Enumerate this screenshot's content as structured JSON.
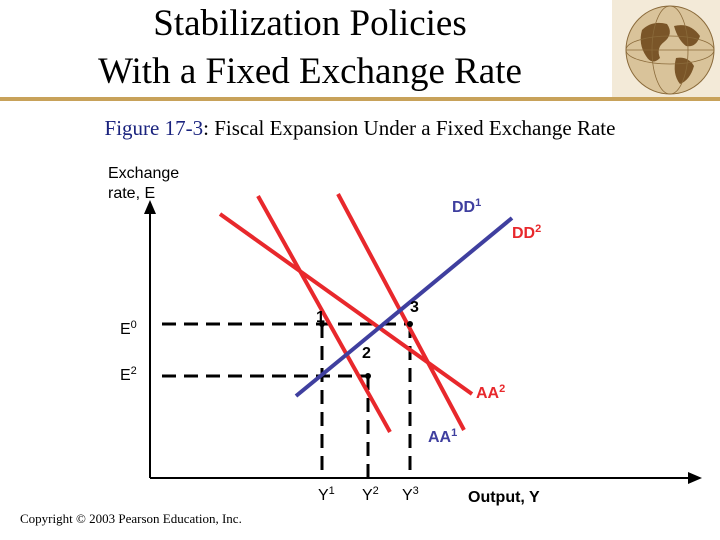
{
  "title": {
    "line1": "Stabilization Policies",
    "line2": "With a Fixed Exchange Rate"
  },
  "caption": {
    "figure": "Figure 17-3",
    "text": ": Fiscal Expansion Under a Fixed Exchange Rate"
  },
  "axes": {
    "y_label_line1": "Exchange",
    "y_label_line2": "rate, E",
    "x_label": "Output, Y"
  },
  "curves": {
    "dd1": {
      "base": "DD",
      "sub": "1",
      "color": "#e8282c"
    },
    "dd2": {
      "base": "DD",
      "sub": "2",
      "color": "#e8282c"
    },
    "aa1": {
      "base": "AA",
      "sub": "1",
      "color": "#3f3f9f"
    },
    "aa2": {
      "base": "AA",
      "sub": "2",
      "color": "#e8282c"
    }
  },
  "levels": {
    "e0": {
      "base": "E",
      "sub": "0"
    },
    "e2": {
      "base": "E",
      "sub": "2"
    },
    "y1": {
      "base": "Y",
      "sub": "1"
    },
    "y2": {
      "base": "Y",
      "sub": "2"
    },
    "y3": {
      "base": "Y",
      "sub": "3"
    }
  },
  "points": {
    "p1": "1",
    "p2": "2",
    "p3": "3"
  },
  "copyright": "Copyright © 2003 Pearson Education, Inc."
}
